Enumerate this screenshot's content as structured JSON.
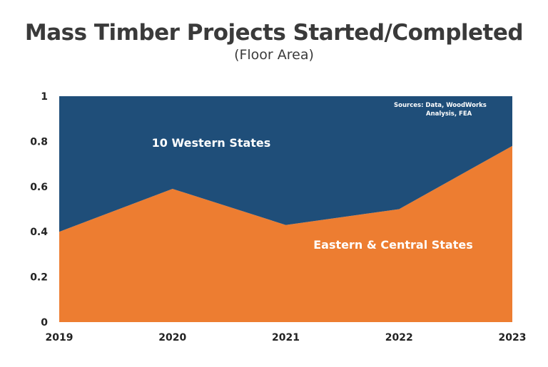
{
  "chart_data": {
    "type": "area",
    "stacked": true,
    "percent": true,
    "title": "Mass Timber Projects Started/Completed",
    "subtitle": "(Floor Area)",
    "categories": [
      "2019",
      "2020",
      "2021",
      "2022",
      "2023"
    ],
    "series": [
      {
        "name": "Eastern & Central States",
        "values": [
          0.4,
          0.59,
          0.43,
          0.5,
          0.78
        ],
        "color": "#ed7d31"
      },
      {
        "name": "10 Western States",
        "values": [
          0.6,
          0.41,
          0.57,
          0.5,
          0.22
        ],
        "color": "#1f4e79"
      }
    ],
    "yticks": [
      "0",
      "0.2",
      "0.4",
      "0.6",
      "0.8",
      "1"
    ],
    "ylim": [
      0,
      1
    ],
    "grid": false,
    "annotation": {
      "line1": "Sources: Data, WoodWorks",
      "line2": "Analysis, FEA"
    }
  }
}
